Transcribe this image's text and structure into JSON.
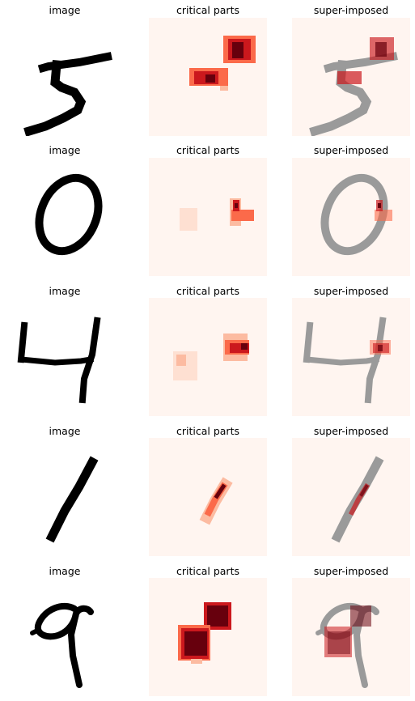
{
  "figure": {
    "column_titles": [
      "image",
      "critical parts",
      "super-imposed"
    ],
    "rows": [
      {
        "digit": "5",
        "titles": [
          "image",
          "critical parts",
          "super-imposed"
        ]
      },
      {
        "digit": "0",
        "titles": [
          "image",
          "critical parts",
          "super-imposed"
        ]
      },
      {
        "digit": "4",
        "titles": [
          "image",
          "critical parts",
          "super-imposed"
        ]
      },
      {
        "digit": "1",
        "titles": [
          "image",
          "critical parts",
          "super-imposed"
        ]
      },
      {
        "digit": "9",
        "titles": [
          "image",
          "critical parts",
          "super-imposed"
        ]
      }
    ]
  },
  "colors": {
    "ink": "#000000",
    "heat_background": "#fff5f0",
    "heat_light": "#fcbba1",
    "heat_mid": "#fb6a4a",
    "heat_strong": "#cb181d",
    "heat_max": "#67000d",
    "superimposed_ink": "#9a9a9a"
  },
  "colormap": "Reds"
}
